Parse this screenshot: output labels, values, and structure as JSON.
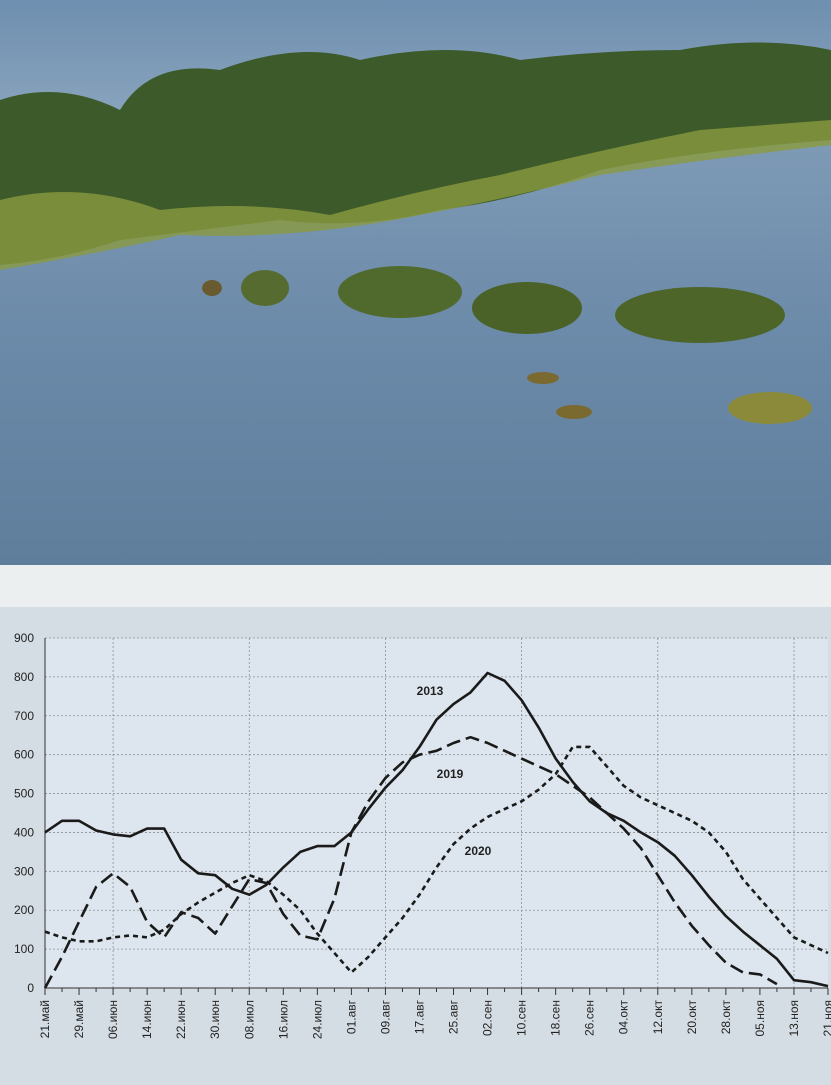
{
  "chart_data": {
    "type": "line",
    "categories": [
      "21.май",
      null,
      "29.май",
      null,
      "06.июн",
      null,
      "14.июн",
      null,
      "22.июн",
      null,
      "30.июн",
      null,
      "08.июл",
      null,
      "16.июл",
      null,
      "24.июл",
      null,
      "01.авг",
      null,
      "09.авг",
      null,
      "17.авг",
      null,
      "25.авг",
      null,
      "02.сен",
      null,
      "10.сен",
      null,
      "18.сен",
      null,
      "26.сен",
      null,
      "04.окт",
      null,
      "12.окт",
      null,
      "20.окт",
      null,
      "28.окт",
      null,
      "05.ноя",
      null,
      "13.ноя",
      null,
      "21.ноя"
    ],
    "series": [
      {
        "name": "2013",
        "color": "#1a1a1a",
        "dash": "solid",
        "values": [
          400,
          430,
          430,
          405,
          395,
          390,
          410,
          410,
          330,
          295,
          290,
          255,
          240,
          265,
          310,
          350,
          365,
          365,
          400,
          460,
          515,
          560,
          620,
          690,
          730,
          760,
          810,
          790,
          740,
          670,
          590,
          530,
          480,
          450,
          430,
          400,
          375,
          340,
          290,
          235,
          185,
          145,
          110,
          75,
          20,
          15,
          5
        ]
      },
      {
        "name": "2019",
        "color": "#1a1a1a",
        "dash": "long",
        "values": [
          0,
          80,
          170,
          260,
          295,
          260,
          170,
          130,
          195,
          180,
          140,
          210,
          280,
          270,
          190,
          135,
          125,
          230,
          400,
          480,
          540,
          580,
          600,
          610,
          630,
          645,
          630,
          610,
          590,
          570,
          550,
          520,
          490,
          450,
          410,
          360,
          290,
          220,
          160,
          110,
          65,
          40,
          35,
          10,
          null,
          null,
          null
        ]
      },
      {
        "name": "2020",
        "color": "#1a1a1a",
        "dash": "short",
        "values": [
          145,
          130,
          120,
          120,
          130,
          135,
          130,
          150,
          190,
          220,
          245,
          270,
          290,
          275,
          240,
          200,
          140,
          90,
          40,
          80,
          130,
          180,
          240,
          310,
          370,
          410,
          440,
          460,
          480,
          510,
          550,
          620,
          620,
          570,
          520,
          490,
          470,
          450,
          430,
          400,
          350,
          280,
          230,
          180,
          130,
          110,
          90
        ]
      }
    ],
    "ylim": [
      0,
      900
    ],
    "yticks": [
      0,
      100,
      200,
      300,
      400,
      500,
      600,
      700,
      800,
      900
    ],
    "grid": true
  }
}
